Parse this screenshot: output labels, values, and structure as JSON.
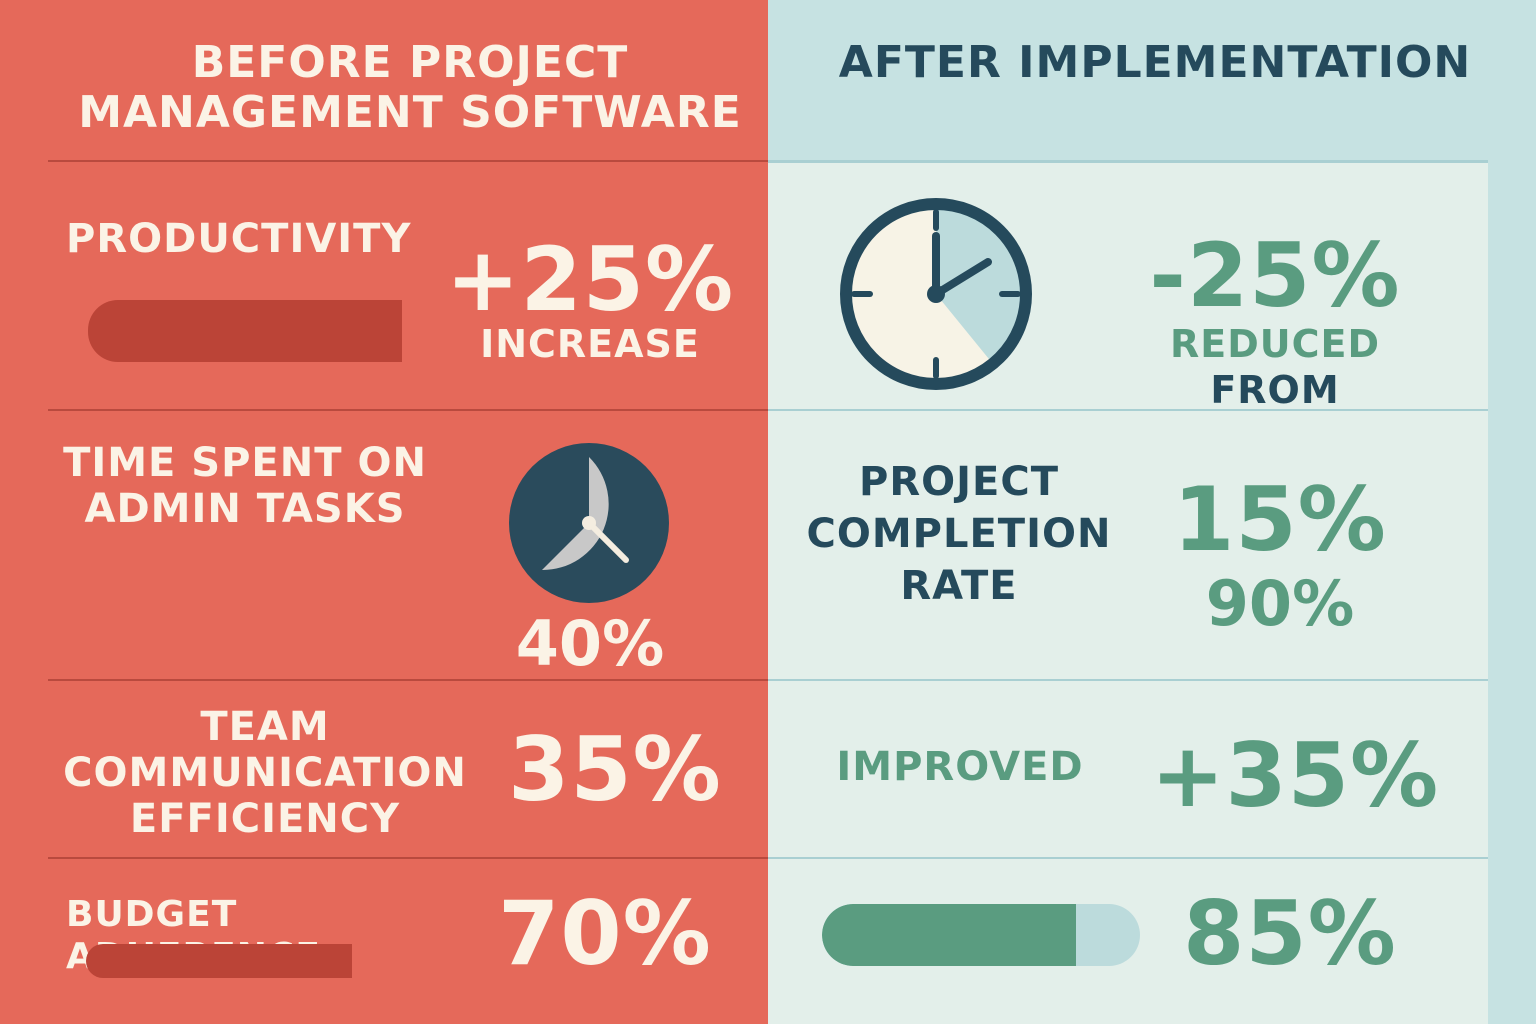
{
  "header": {
    "before_title": "BEFORE PROJECT MANAGEMENT SOFTWARE",
    "after_title": "AFTER IMPLEMENTATION"
  },
  "before": {
    "productivity": {
      "label": "PRODUCTIVITY",
      "value": "+25%",
      "sublabel": "INCREASE"
    },
    "admin_time": {
      "label": "TIME SPENT ON ADMIN TASKS",
      "value": "40%"
    },
    "communication": {
      "label": "TEAM COMMUNICATION EFFICIENCY",
      "value": "35%"
    },
    "budget": {
      "label": "BUDGET ADHERENCE",
      "value": "70%"
    }
  },
  "after": {
    "admin_time": {
      "value": "-25%",
      "sublabel": "REDUCED",
      "sublabel2": "FROM"
    },
    "completion": {
      "label": "PROJECT COMPLETION RATE",
      "value": "15%",
      "value2": "90%"
    },
    "communication": {
      "label": "IMPROVED",
      "value": "+35%"
    },
    "budget": {
      "value": "85%",
      "progress": 0.85
    }
  },
  "colors": {
    "before_bg": "#e5695a",
    "after_bg": "#c6e2e2",
    "navy": "#254a5c",
    "green": "#5a9c80",
    "cream": "#fbf3e6"
  },
  "icons": [
    "clock-icon",
    "stopwatch-icon"
  ]
}
